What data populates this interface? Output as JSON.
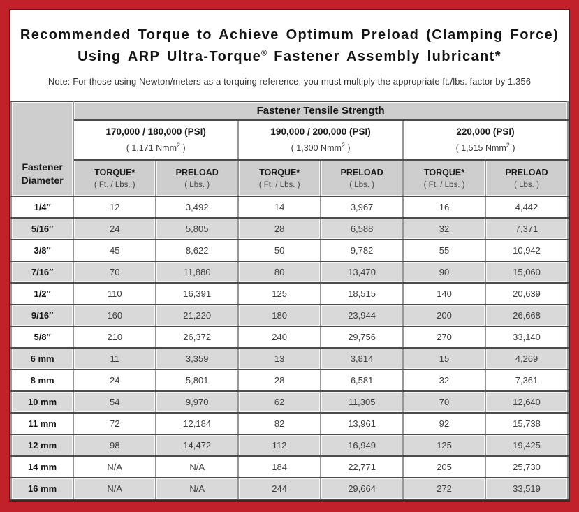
{
  "colors": {
    "frame_red": "#c1222a",
    "panel_border": "#332d2e",
    "header_gray": "#cdcdcd",
    "zebra_gray": "#d9d9d9",
    "grid_dark": "#4b4b4d",
    "grid_light": "#98989a"
  },
  "title": {
    "line1": "Recommended Torque to Achieve Optimum Preload (Clamping Force)",
    "line2_pre": "Using ARP Ultra-Torque",
    "line2_sup": "®",
    "line2_post": " Fastener Assembly lubricant*"
  },
  "note": "Note: For those using Newton/meters as a torquing reference, you must multiply the appropriate ft./lbs. factor by 1.356",
  "table": {
    "corner_header": "Fastener Diameter",
    "top_header": "Fastener Tensile Strength",
    "groups": [
      {
        "psi": "170,000 / 180,000 (PSI)",
        "nmm_pre": "( 1,171 Nmm",
        "nmm_sup": "2",
        "nmm_post": " )"
      },
      {
        "psi": "190,000 / 200,000 (PSI)",
        "nmm_pre": "( 1,300 Nmm",
        "nmm_sup": "2",
        "nmm_post": " )"
      },
      {
        "psi": "220,000 (PSI)",
        "nmm_pre": "( 1,515 Nmm",
        "nmm_sup": "2",
        "nmm_post": " )"
      }
    ],
    "sub_headers": {
      "torque_label": "TORQUE*",
      "torque_unit": "( Ft. / Lbs. )",
      "preload_label": "PRELOAD",
      "preload_unit": "( Lbs. )"
    },
    "rows": [
      {
        "diameter": "1/4″",
        "values": [
          "12",
          "3,492",
          "14",
          "3,967",
          "16",
          "4,442"
        ]
      },
      {
        "diameter": "5/16″",
        "values": [
          "24",
          "5,805",
          "28",
          "6,588",
          "32",
          "7,371"
        ]
      },
      {
        "diameter": "3/8″",
        "values": [
          "45",
          "8,622",
          "50",
          "9,782",
          "55",
          "10,942"
        ]
      },
      {
        "diameter": "7/16″",
        "values": [
          "70",
          "11,880",
          "80",
          "13,470",
          "90",
          "15,060"
        ]
      },
      {
        "diameter": "1/2″",
        "values": [
          "110",
          "16,391",
          "125",
          "18,515",
          "140",
          "20,639"
        ]
      },
      {
        "diameter": "9/16″",
        "values": [
          "160",
          "21,220",
          "180",
          "23,944",
          "200",
          "26,668"
        ]
      },
      {
        "diameter": "5/8″",
        "values": [
          "210",
          "26,372",
          "240",
          "29,756",
          "270",
          "33,140"
        ]
      },
      {
        "diameter": "6 mm",
        "values": [
          "11",
          "3,359",
          "13",
          "3,814",
          "15",
          "4,269"
        ]
      },
      {
        "diameter": "8 mm",
        "values": [
          "24",
          "5,801",
          "28",
          "6,581",
          "32",
          "7,361"
        ]
      },
      {
        "diameter": "10 mm",
        "values": [
          "54",
          "9,970",
          "62",
          "11,305",
          "70",
          "12,640"
        ]
      },
      {
        "diameter": "11 mm",
        "values": [
          "72",
          "12,184",
          "82",
          "13,961",
          "92",
          "15,738"
        ]
      },
      {
        "diameter": "12 mm",
        "values": [
          "98",
          "14,472",
          "112",
          "16,949",
          "125",
          "19,425"
        ]
      },
      {
        "diameter": "14 mm",
        "values": [
          "N/A",
          "N/A",
          "184",
          "22,771",
          "205",
          "25,730"
        ]
      },
      {
        "diameter": "16 mm",
        "values": [
          "N/A",
          "N/A",
          "244",
          "29,664",
          "272",
          "33,519"
        ]
      }
    ]
  }
}
